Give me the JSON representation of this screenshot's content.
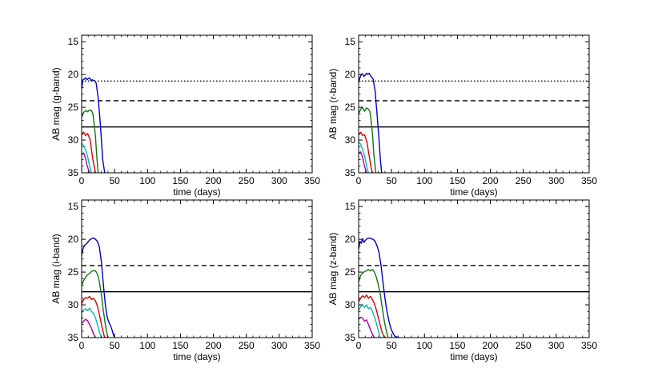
{
  "chart_data": [
    {
      "type": "line",
      "xlabel": "time (days)",
      "ylabel": "AB mag (g-band)",
      "xlim": [
        0,
        350
      ],
      "ylim": [
        35,
        14
      ],
      "y_inverted": true,
      "xticks": [
        0,
        50,
        100,
        150,
        200,
        250,
        300,
        350
      ],
      "yticks": [
        15,
        20,
        25,
        30,
        35
      ],
      "grid": false,
      "reference_lines": [
        {
          "style": "dotted",
          "y": 21
        },
        {
          "style": "dashed",
          "y": 24
        },
        {
          "style": "solid",
          "y": 28
        }
      ],
      "series": [
        {
          "color": "#0000cc",
          "x": [
            0,
            2,
            4,
            6,
            8,
            10,
            12,
            14,
            16,
            18,
            20,
            22,
            25,
            28,
            30,
            32,
            35
          ],
          "y": [
            22.2,
            20.8,
            20.7,
            20.5,
            20.8,
            20.6,
            20.5,
            20.9,
            20.8,
            20.9,
            21.0,
            21.3,
            23.5,
            27.0,
            30.0,
            33.0,
            35.0
          ]
        },
        {
          "color": "#117711",
          "x": [
            0,
            3,
            6,
            9,
            12,
            15,
            17,
            19,
            21,
            23,
            25
          ],
          "y": [
            26.5,
            25.8,
            25.5,
            25.7,
            25.4,
            25.5,
            26.0,
            27.5,
            29.5,
            32.5,
            35.0
          ]
        },
        {
          "color": "#dd0000",
          "x": [
            0,
            3,
            6,
            9,
            11,
            13,
            15,
            17,
            19,
            21
          ],
          "y": [
            29.2,
            28.8,
            29.3,
            29.0,
            29.5,
            30.0,
            31.5,
            33.0,
            34.0,
            35.0
          ]
        },
        {
          "color": "#00bbbb",
          "x": [
            0,
            3,
            6,
            9,
            11,
            13,
            15
          ],
          "y": [
            30.5,
            30.8,
            31.5,
            32.5,
            33.5,
            34.3,
            35.0
          ]
        },
        {
          "color": "#aa00aa",
          "x": [
            0,
            3,
            6,
            8,
            10,
            12
          ],
          "y": [
            32.2,
            32.0,
            32.8,
            33.8,
            34.4,
            35.0
          ]
        }
      ]
    },
    {
      "type": "line",
      "xlabel": "time (days)",
      "ylabel": "AB mag (r-band)",
      "xlim": [
        0,
        350
      ],
      "ylim": [
        35,
        14
      ],
      "y_inverted": true,
      "xticks": [
        0,
        50,
        100,
        150,
        200,
        250,
        300,
        350
      ],
      "yticks": [
        15,
        20,
        25,
        30,
        35
      ],
      "grid": false,
      "reference_lines": [
        {
          "style": "dotted",
          "y": 21
        },
        {
          "style": "dashed",
          "y": 24
        },
        {
          "style": "solid",
          "y": 28
        }
      ],
      "series": [
        {
          "color": "#0000cc",
          "x": [
            0,
            2,
            4,
            6,
            8,
            10,
            12,
            14,
            16,
            18,
            20,
            22,
            25,
            28,
            31,
            33,
            35
          ],
          "y": [
            21.2,
            20.5,
            20.0,
            19.9,
            20.3,
            20.1,
            19.8,
            20.0,
            19.8,
            20.2,
            20.4,
            20.7,
            22.5,
            26.0,
            30.0,
            33.0,
            35.0
          ]
        },
        {
          "color": "#117711",
          "x": [
            0,
            3,
            6,
            9,
            12,
            15,
            17,
            19,
            21,
            23,
            26
          ],
          "y": [
            26.0,
            25.3,
            25.0,
            25.6,
            25.1,
            25.3,
            25.6,
            27.0,
            29.0,
            32.0,
            35.0
          ]
        },
        {
          "color": "#dd0000",
          "x": [
            0,
            3,
            6,
            9,
            11,
            13,
            15,
            17,
            19,
            21
          ],
          "y": [
            29.2,
            28.8,
            29.3,
            29.2,
            29.8,
            30.5,
            31.8,
            33.0,
            34.2,
            35.0
          ]
        },
        {
          "color": "#00bbbb",
          "x": [
            0,
            3,
            6,
            9,
            11,
            13,
            15
          ],
          "y": [
            30.3,
            30.6,
            31.4,
            32.4,
            33.4,
            34.3,
            35.0
          ]
        },
        {
          "color": "#aa00aa",
          "x": [
            0,
            3,
            6,
            8,
            10,
            12
          ],
          "y": [
            32.0,
            31.8,
            32.6,
            33.6,
            34.3,
            35.0
          ]
        }
      ]
    },
    {
      "type": "line",
      "xlabel": "time (days)",
      "ylabel": "AB mag (i-band)",
      "xlim": [
        0,
        350
      ],
      "ylim": [
        35,
        14
      ],
      "y_inverted": true,
      "xticks": [
        0,
        50,
        100,
        150,
        200,
        250,
        300,
        350
      ],
      "yticks": [
        15,
        20,
        25,
        30,
        35
      ],
      "grid": false,
      "reference_lines": [
        {
          "style": "dashed",
          "y": 24
        },
        {
          "style": "solid",
          "y": 28
        }
      ],
      "series": [
        {
          "color": "#0000cc",
          "x": [
            0,
            2,
            4,
            6,
            9,
            12,
            15,
            18,
            21,
            24,
            27,
            30,
            33,
            36,
            38,
            40,
            42,
            44,
            46,
            48,
            50
          ],
          "y": [
            22.5,
            21.5,
            21.0,
            20.8,
            20.5,
            20.1,
            19.9,
            19.8,
            20.0,
            20.3,
            21.2,
            23.5,
            27.0,
            30.0,
            31.5,
            32.3,
            32.8,
            33.2,
            33.8,
            34.5,
            35.0
          ]
        },
        {
          "color": "#117711",
          "x": [
            0,
            3,
            6,
            9,
            12,
            15,
            18,
            21,
            24,
            27,
            30,
            33,
            36,
            38,
            40
          ],
          "y": [
            27.0,
            26.3,
            25.8,
            25.4,
            25.2,
            24.9,
            24.8,
            24.8,
            25.3,
            26.5,
            28.5,
            31.0,
            33.0,
            34.2,
            35.0
          ]
        },
        {
          "color": "#dd0000",
          "x": [
            0,
            3,
            6,
            9,
            12,
            15,
            18,
            21,
            24,
            27,
            30,
            33,
            35
          ],
          "y": [
            29.8,
            29.2,
            28.9,
            29.0,
            28.7,
            29.2,
            29.0,
            29.4,
            30.2,
            31.5,
            33.0,
            34.3,
            35.0
          ]
        },
        {
          "color": "#00bbbb",
          "x": [
            0,
            3,
            6,
            9,
            12,
            15,
            18,
            21,
            24,
            27,
            30
          ],
          "y": [
            31.2,
            30.8,
            30.6,
            30.9,
            30.5,
            31.0,
            31.3,
            32.0,
            33.0,
            34.2,
            35.0
          ]
        },
        {
          "color": "#aa00aa",
          "x": [
            0,
            3,
            6,
            9,
            12,
            15,
            18,
            21
          ],
          "y": [
            32.8,
            32.5,
            32.2,
            32.4,
            33.0,
            33.6,
            34.4,
            35.0
          ]
        }
      ]
    },
    {
      "type": "line",
      "xlabel": "time (days)",
      "ylabel": "AB mag (z-band)",
      "xlim": [
        0,
        350
      ],
      "ylim": [
        35,
        14
      ],
      "y_inverted": true,
      "xticks": [
        0,
        50,
        100,
        150,
        200,
        250,
        300,
        350
      ],
      "yticks": [
        15,
        20,
        25,
        30,
        35
      ],
      "grid": false,
      "reference_lines": [
        {
          "style": "dashed",
          "y": 24
        },
        {
          "style": "solid",
          "y": 28
        }
      ],
      "series": [
        {
          "color": "#0000cc",
          "x": [
            0,
            2,
            4,
            6,
            8,
            10,
            13,
            16,
            19,
            22,
            25,
            28,
            31,
            34,
            37,
            40,
            43,
            46,
            49,
            52,
            55,
            58,
            61
          ],
          "y": [
            21.5,
            20.3,
            20.6,
            19.9,
            20.5,
            20.2,
            19.9,
            19.8,
            19.9,
            20.0,
            20.3,
            21.0,
            22.0,
            24.0,
            26.5,
            29.0,
            31.0,
            32.5,
            33.6,
            34.3,
            34.8,
            34.9,
            35.0
          ]
        },
        {
          "color": "#117711",
          "x": [
            0,
            3,
            6,
            9,
            12,
            15,
            18,
            21,
            24,
            27,
            30,
            33,
            36,
            39,
            42,
            45
          ],
          "y": [
            26.5,
            25.5,
            25.2,
            24.9,
            24.8,
            24.6,
            24.8,
            24.6,
            25.0,
            25.8,
            27.0,
            28.5,
            30.5,
            32.5,
            34.0,
            35.0
          ]
        },
        {
          "color": "#dd0000",
          "x": [
            0,
            3,
            6,
            9,
            12,
            15,
            18,
            21,
            24,
            27,
            30,
            33,
            36,
            39
          ],
          "y": [
            29.5,
            29.0,
            28.6,
            28.9,
            28.5,
            29.0,
            28.7,
            29.2,
            29.8,
            30.8,
            32.0,
            33.2,
            34.3,
            35.0
          ]
        },
        {
          "color": "#00bbbb",
          "x": [
            0,
            3,
            6,
            9,
            12,
            15,
            18,
            21,
            24,
            27,
            30,
            33
          ],
          "y": [
            30.8,
            30.3,
            30.0,
            30.4,
            30.0,
            30.6,
            30.4,
            31.0,
            31.8,
            32.8,
            34.0,
            35.0
          ]
        },
        {
          "color": "#aa00aa",
          "x": [
            0,
            3,
            6,
            9,
            12,
            15,
            18,
            21,
            24
          ],
          "y": [
            32.2,
            31.9,
            32.0,
            32.5,
            32.3,
            33.0,
            33.8,
            34.5,
            35.0
          ]
        }
      ]
    }
  ]
}
